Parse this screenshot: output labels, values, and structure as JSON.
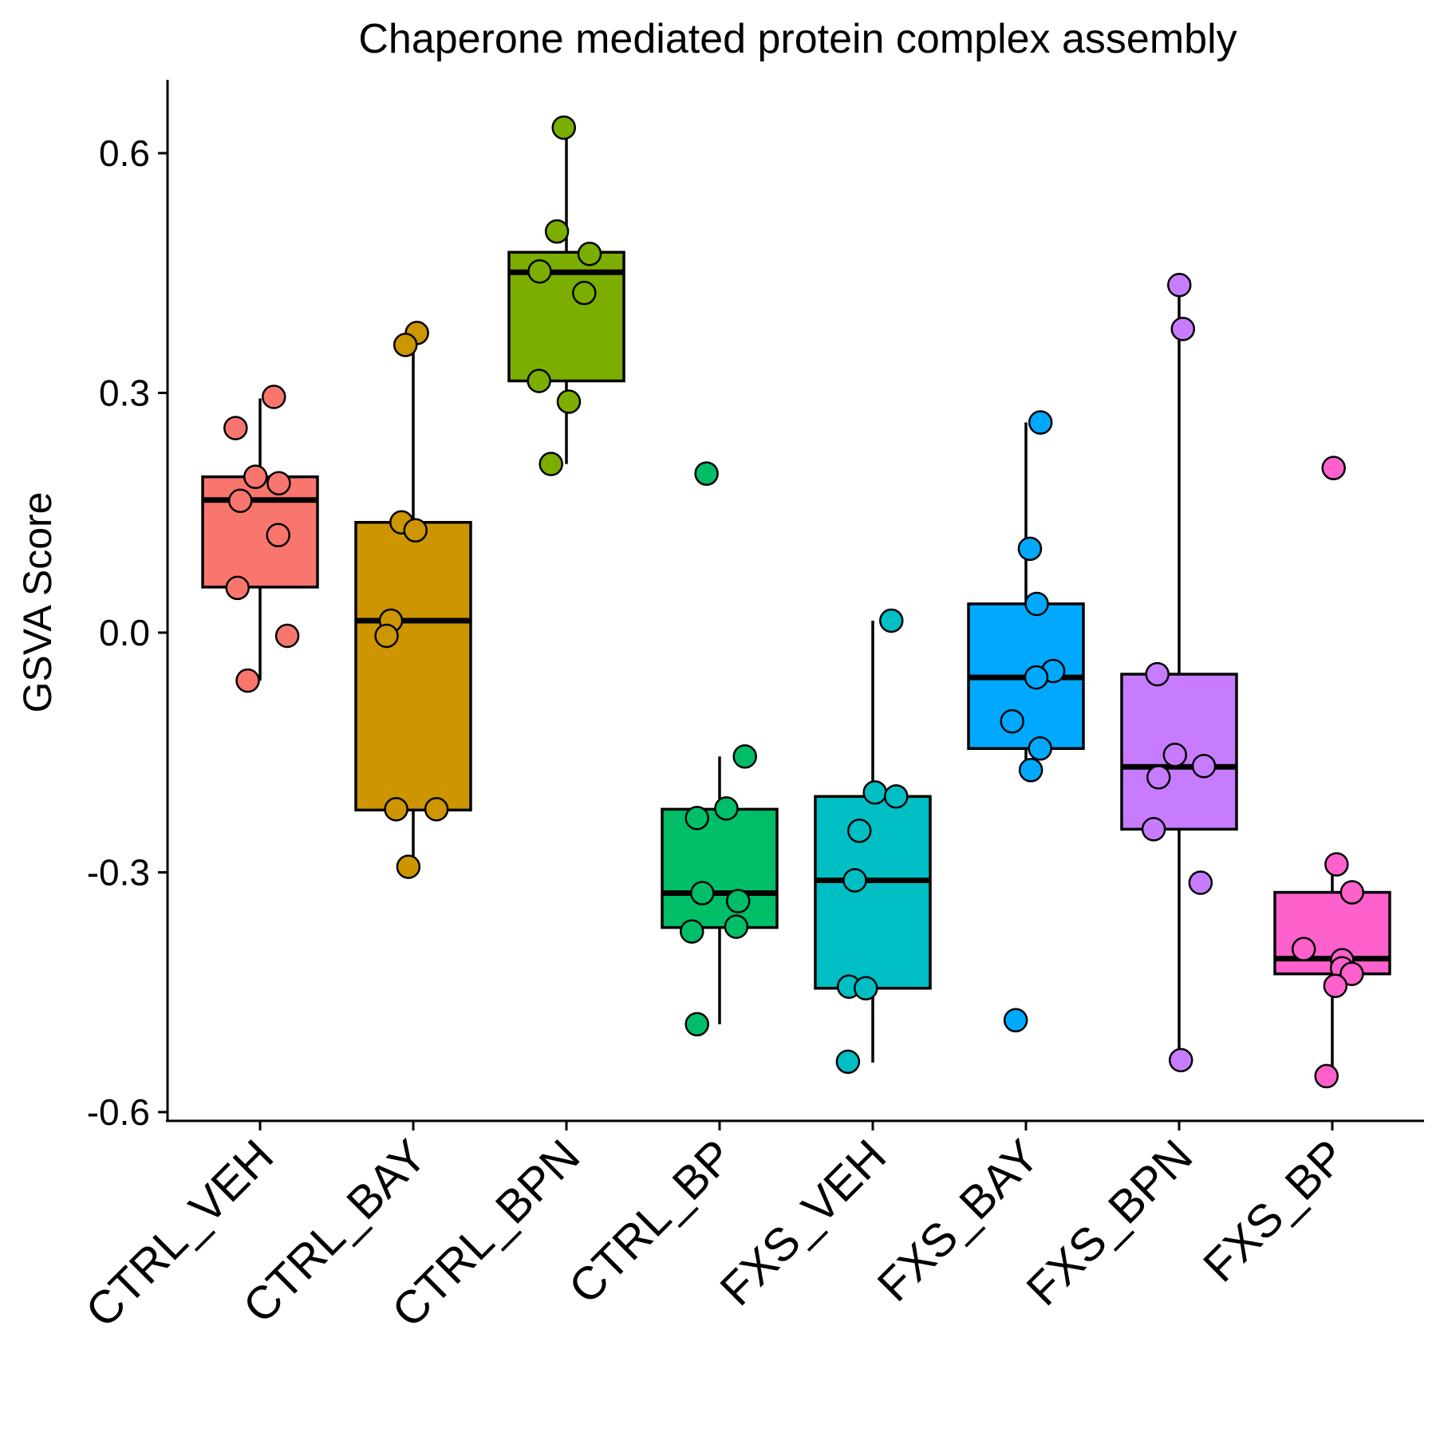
{
  "chart_data": {
    "type": "boxplot",
    "title": "Chaperone mediated protein complex assembly",
    "xlabel": "",
    "ylabel": "GSVA Score",
    "ylim": [
      -0.6,
      0.69
    ],
    "yticks": [
      -0.6,
      -0.3,
      0.0,
      0.3,
      0.6
    ],
    "ytick_labels": [
      "-0.6",
      "-0.3",
      "0.0",
      "0.3",
      "0.6"
    ],
    "grid": false,
    "legend": "none",
    "categories": [
      "CTRL_VEH",
      "CTRL_BAY",
      "CTRL_BPN",
      "CTRL_BP",
      "FXS_VEH",
      "FXS_BAY",
      "FXS_BPN",
      "FXS_BP"
    ],
    "colors": [
      "#F8766D",
      "#CD9600",
      "#7CAE00",
      "#00BE67",
      "#00BFC4",
      "#00A9FF",
      "#C77CFF",
      "#FF61CC"
    ],
    "boxes": [
      {
        "whisker_low": -0.06,
        "q1": 0.057,
        "median": 0.166,
        "q3": 0.195,
        "whisker_high": 0.293
      },
      {
        "whisker_low": -0.29,
        "q1": -0.222,
        "median": 0.015,
        "q3": 0.138,
        "whisker_high": 0.375
      },
      {
        "whisker_low": 0.211,
        "q1": 0.315,
        "median": 0.451,
        "q3": 0.476,
        "whisker_high": 0.63
      },
      {
        "whisker_low": -0.49,
        "q1": -0.369,
        "median": -0.326,
        "q3": -0.221,
        "whisker_high": -0.155
      },
      {
        "whisker_low": -0.538,
        "q1": -0.445,
        "median": -0.31,
        "q3": -0.205,
        "whisker_high": 0.015
      },
      {
        "whisker_low": -0.172,
        "q1": -0.145,
        "median": -0.056,
        "q3": 0.036,
        "whisker_high": 0.263
      },
      {
        "whisker_low": -0.535,
        "q1": -0.246,
        "median": -0.168,
        "q3": -0.052,
        "whisker_high": 0.432
      },
      {
        "whisker_low": -0.555,
        "q1": -0.427,
        "median": -0.408,
        "q3": -0.325,
        "whisker_high": -0.29
      }
    ],
    "points": [
      {
        "category": "CTRL_VEH",
        "values": [
          0.295,
          0.256,
          0.195,
          0.187,
          0.165,
          0.122,
          0.056,
          -0.004,
          -0.06
        ]
      },
      {
        "category": "CTRL_BAY",
        "values": [
          0.375,
          0.36,
          0.138,
          0.128,
          0.015,
          -0.004,
          -0.221,
          -0.221,
          -0.293
        ]
      },
      {
        "category": "CTRL_BPN",
        "values": [
          0.632,
          0.502,
          0.474,
          0.452,
          0.425,
          0.315,
          0.289,
          0.211
        ]
      },
      {
        "category": "CTRL_BP",
        "values": [
          0.199,
          -0.155,
          -0.22,
          -0.232,
          -0.326,
          -0.336,
          -0.368,
          -0.374,
          -0.49
        ]
      },
      {
        "category": "FXS_VEH",
        "values": [
          0.015,
          -0.2,
          -0.205,
          -0.248,
          -0.31,
          -0.443,
          -0.445,
          -0.537
        ]
      },
      {
        "category": "FXS_BAY",
        "values": [
          0.263,
          0.105,
          0.036,
          -0.048,
          -0.056,
          -0.111,
          -0.145,
          -0.172,
          -0.485
        ]
      },
      {
        "category": "FXS_BPN",
        "values": [
          0.435,
          0.38,
          -0.052,
          -0.153,
          -0.167,
          -0.181,
          -0.246,
          -0.313,
          -0.535
        ]
      },
      {
        "category": "FXS_BP",
        "values": [
          0.206,
          -0.29,
          -0.325,
          -0.396,
          -0.41,
          -0.42,
          -0.427,
          -0.442,
          -0.555
        ]
      }
    ]
  }
}
